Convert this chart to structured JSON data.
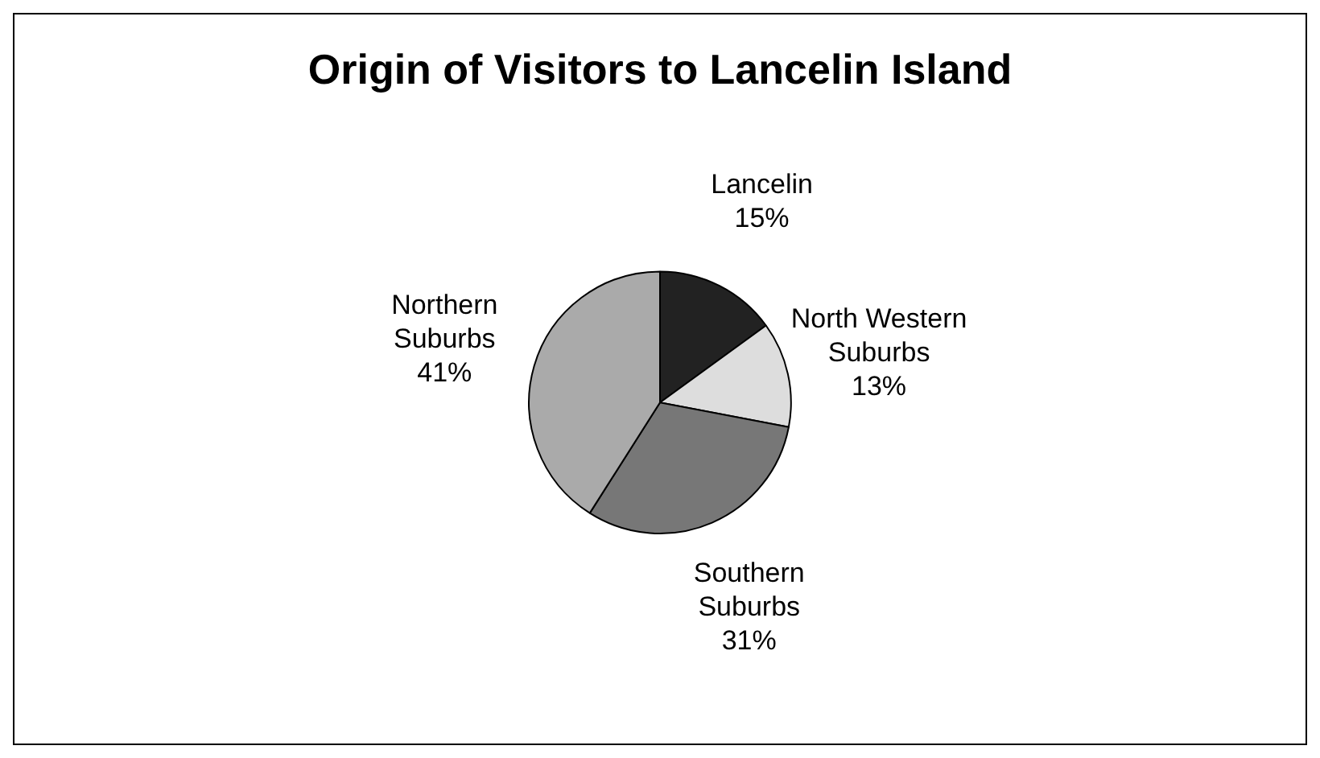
{
  "chart_data": {
    "type": "pie",
    "title": "Origin of Visitors to Lancelin Island",
    "categories": [
      "Lancelin",
      "North Western Suburbs",
      "Southern Suburbs",
      "Northern Suburbs"
    ],
    "values": [
      15,
      13,
      31,
      41
    ],
    "value_labels": [
      "15%",
      "13%",
      "31%",
      "41%"
    ],
    "colors": [
      "#222222",
      "#dddddd",
      "#777777",
      "#aaaaaa"
    ],
    "legend": false
  }
}
